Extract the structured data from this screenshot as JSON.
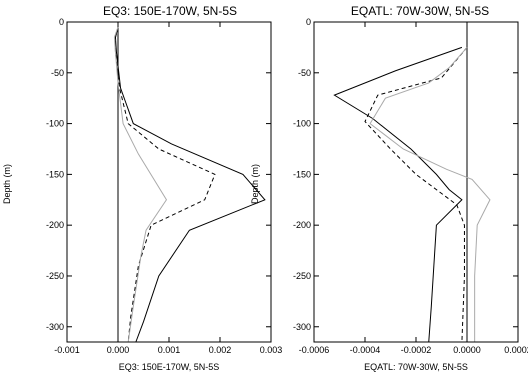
{
  "chart_data": [
    {
      "type": "line",
      "title": "EQ3: 150E-170W, 5N-5S",
      "xlabel": "EQ3: 150E-170W, 5N-5S",
      "ylabel": "Depth (m)",
      "xlim": [
        -0.001,
        0.003
      ],
      "ylim": [
        -315,
        0
      ],
      "x_ticks": [
        -0.001,
        0,
        0.001,
        0.002,
        0.003
      ],
      "x_tick_labels": [
        "-0.001",
        "0.000",
        "0.001",
        "0.002",
        "0.003"
      ],
      "y_ticks": [
        0,
        -50,
        -100,
        -150,
        -200,
        -250,
        -300
      ],
      "y_tick_labels": [
        "0",
        "-50",
        "-100",
        "-150",
        "-200",
        "-250",
        "-300"
      ],
      "zero_line": 0,
      "series": [
        {
          "style": "solid",
          "color": "#000000",
          "x": [
            0.0,
            -5e-05,
            -3e-05,
            5e-05,
            0.0003,
            0.00105,
            0.00245,
            0.00288,
            0.0014,
            0.0008,
            0.0005,
            0.00035
          ],
          "y": [
            -5,
            -15,
            -30,
            -65,
            -100,
            -120,
            -150,
            -175,
            -205,
            -250,
            -295,
            -315
          ]
        },
        {
          "style": "dashed",
          "color": "#000000",
          "x": [
            0.0,
            -5e-05,
            -5e-05,
            3e-05,
            0.0002,
            0.0008,
            0.0019,
            0.0017,
            0.00065,
            0.0004,
            0.00025,
            0.0002
          ],
          "y": [
            -5,
            -15,
            -30,
            -65,
            -100,
            -125,
            -150,
            -175,
            -200,
            -240,
            -290,
            -315
          ]
        },
        {
          "style": "solid",
          "color": "#aaaaaa",
          "x": [
            0.0,
            -7e-05,
            -5e-05,
            0.0,
            0.0001,
            0.0004,
            0.00095,
            0.00055,
            0.00045,
            0.0003,
            0.0002
          ],
          "y": [
            -5,
            -15,
            -30,
            -60,
            -100,
            -130,
            -175,
            -205,
            -230,
            -280,
            -315
          ]
        }
      ]
    },
    {
      "type": "line",
      "title": "EQATL: 70W-30W, 5N-5S",
      "xlabel": "EQATL: 70W-30W, 5N-5S",
      "ylabel": "Depth (m)",
      "xlim": [
        -0.0006,
        0.0002
      ],
      "ylim": [
        -315,
        0
      ],
      "x_ticks": [
        -0.0006,
        -0.0004,
        -0.0002,
        0,
        0.0002
      ],
      "x_tick_labels": [
        "-0.0006",
        "-0.0004",
        "-0.0002",
        "0.0000",
        "0.0002"
      ],
      "y_ticks": [
        0,
        -50,
        -100,
        -150,
        -200,
        -250,
        -300
      ],
      "y_tick_labels": [
        "0",
        "-50",
        "-100",
        "-150",
        "-200",
        "-250",
        "-300"
      ],
      "zero_line": 0,
      "series": [
        {
          "style": "solid",
          "color": "#000000",
          "x": [
            -2e-05,
            -0.00028,
            -0.00052,
            -0.00037,
            -0.00022,
            -0.00012,
            -7e-05,
            -2e-05,
            -0.00012,
            -0.00013,
            -0.00014,
            -0.00015
          ],
          "y": [
            -25,
            -48,
            -72,
            -95,
            -125,
            -150,
            -165,
            -175,
            -200,
            -240,
            -280,
            -315
          ]
        },
        {
          "style": "dashed",
          "color": "#000000",
          "x": [
            0.0,
            -5e-05,
            -0.0001,
            -0.00035,
            -0.0004,
            -0.0003,
            -0.0002,
            -0.00012,
            -4e-05,
            -1e-05,
            -1e-05,
            -2e-05
          ],
          "y": [
            -25,
            -40,
            -55,
            -72,
            -98,
            -125,
            -150,
            -165,
            -180,
            -200,
            -250,
            -315
          ]
        },
        {
          "style": "solid",
          "color": "#aaaaaa",
          "x": [
            0.0,
            -7e-05,
            -0.00015,
            -0.00032,
            -0.00038,
            -0.00025,
            -8e-05,
            2e-05,
            9e-05,
            4e-05,
            3e-05,
            3e-05
          ],
          "y": [
            -25,
            -45,
            -60,
            -75,
            -100,
            -125,
            -145,
            -155,
            -175,
            -200,
            -250,
            -315
          ]
        }
      ]
    }
  ]
}
